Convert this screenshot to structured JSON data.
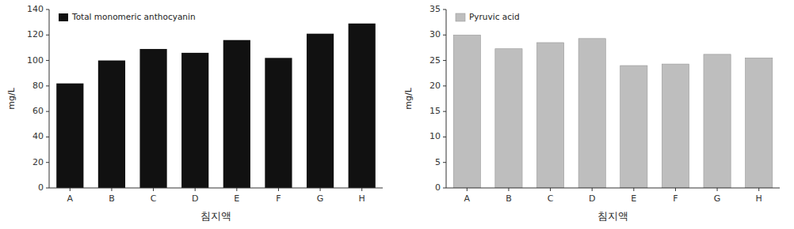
{
  "chart_data": [
    {
      "type": "bar",
      "categories": [
        "A",
        "B",
        "C",
        "D",
        "E",
        "F",
        "G",
        "H"
      ],
      "series": [
        {
          "name": "Total monomeric anthocyanin",
          "color": "#111111",
          "values": [
            82,
            100,
            109,
            106,
            116,
            102,
            121,
            129
          ]
        }
      ],
      "xlabel": "침지액",
      "ylabel": "mg/L",
      "ylim": [
        0,
        140
      ],
      "yticks": [
        0,
        20,
        40,
        60,
        80,
        100,
        120,
        140
      ],
      "legend": "upper left"
    },
    {
      "type": "bar",
      "categories": [
        "A",
        "B",
        "C",
        "D",
        "E",
        "F",
        "G",
        "H"
      ],
      "series": [
        {
          "name": "Pyruvic acid",
          "color": "#bebebe",
          "values": [
            30,
            27.3,
            28.5,
            29.3,
            24,
            24.3,
            26.2,
            25.5
          ]
        }
      ],
      "xlabel": "침지액",
      "ylabel": "mg/L",
      "ylim": [
        0,
        35
      ],
      "yticks": [
        0,
        5,
        10,
        15,
        20,
        25,
        30,
        35
      ],
      "legend": "upper left"
    }
  ]
}
